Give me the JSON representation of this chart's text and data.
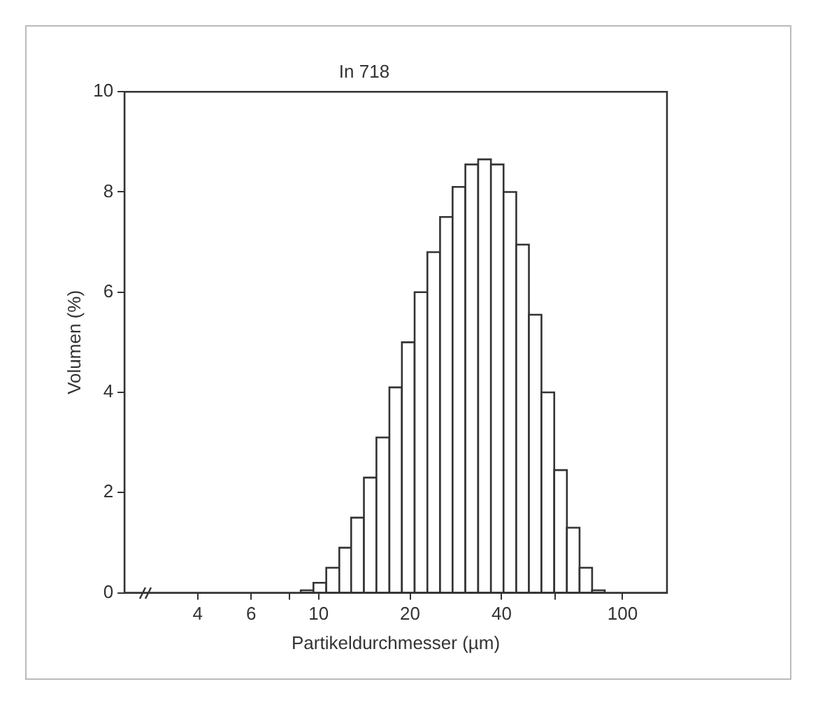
{
  "chart_data": {
    "type": "histogram",
    "title": "In 718",
    "xlabel": "Partikeldurchmesser (µm)",
    "ylabel": "Volumen (%)",
    "bins": [
      8.74,
      9.62,
      10.6,
      11.7,
      12.8,
      14.1,
      15.5,
      17.1,
      18.8,
      20.7,
      22.8,
      25.1,
      27.6,
      30.4,
      33.5,
      36.9,
      40.6,
      44.7,
      49.2,
      54.1,
      59.6,
      65.6,
      72.2,
      79.4,
      87.4
    ],
    "values": [
      0.05,
      0.2,
      0.5,
      0.9,
      1.5,
      2.3,
      3.1,
      4.1,
      5.0,
      6.0,
      6.8,
      7.5,
      8.1,
      8.55,
      8.65,
      8.55,
      8.0,
      6.95,
      5.55,
      4.0,
      2.45,
      1.3,
      0.5,
      0.05
    ],
    "color": "#ffffff",
    "log": "x",
    "xlim": [
      2.3,
      140
    ],
    "xticks": [
      4,
      6,
      {
        "value": 8,
        "label": null
      },
      10,
      20,
      40,
      {
        "value": 60,
        "label": null
      },
      100
    ],
    "ylim": [
      0,
      10
    ],
    "yticks": [
      0,
      2,
      4,
      6,
      8,
      10
    ],
    "grid": false,
    "legend": false
  }
}
